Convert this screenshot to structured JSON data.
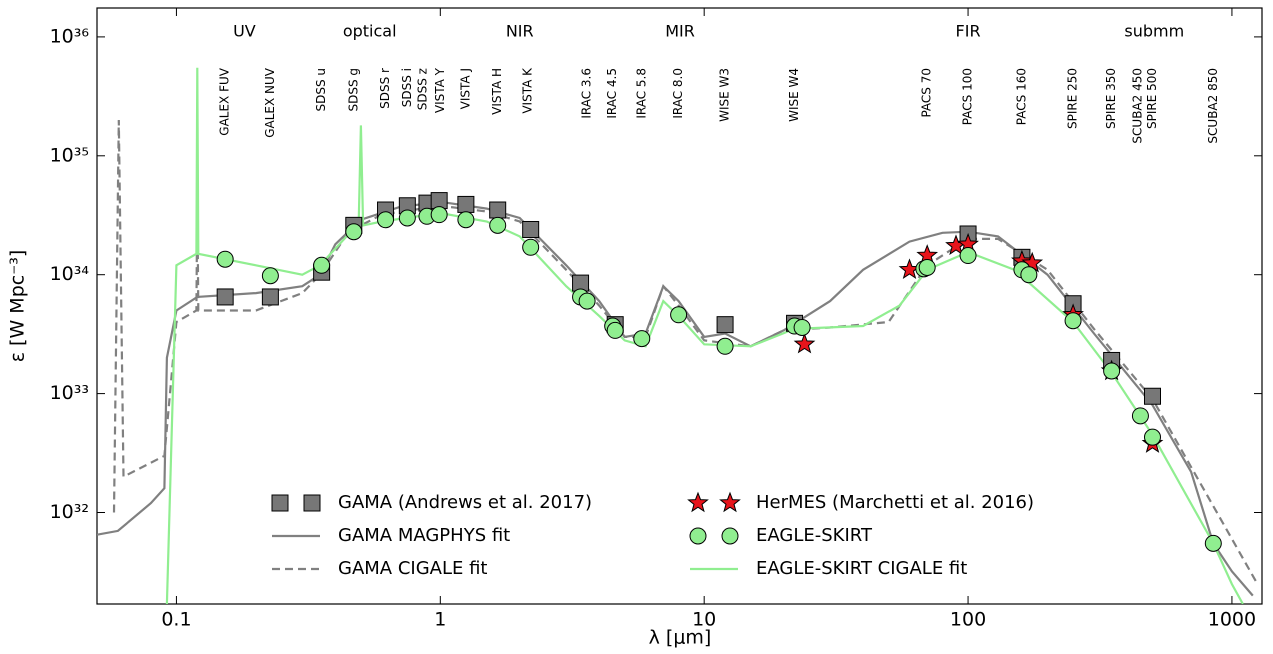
{
  "chart_data": {
    "type": "line",
    "xlabel": "λ [μm]",
    "ylabel": "ε [W Mpc⁻³]",
    "xlog": true,
    "ylog": true,
    "xlim": [
      0.05,
      1300
    ],
    "ylim": [
      1.7e+31,
      1.75e+36
    ],
    "xticks": [
      0.1,
      1,
      10,
      100,
      1000
    ],
    "yticks": [
      {
        "value": 1e+32,
        "label": "10³²"
      },
      {
        "value": 1e+33,
        "label": "10³³"
      },
      {
        "value": 1e+34,
        "label": "10³⁴"
      },
      {
        "value": 1e+35,
        "label": "10³⁵"
      },
      {
        "value": 1e+36,
        "label": "10³⁶"
      }
    ],
    "legend": "lower center",
    "bands": [
      {
        "label": "UV",
        "x": 0.181
      },
      {
        "label": "optical",
        "x": 0.54
      },
      {
        "label": "NIR",
        "x": 2.0
      },
      {
        "label": "MIR",
        "x": 8.1
      },
      {
        "label": "FIR",
        "x": 100
      },
      {
        "label": "submm",
        "x": 508
      }
    ],
    "filters": [
      {
        "label": "GALEX FUV",
        "x": 0.153
      },
      {
        "label": "GALEX NUV",
        "x": 0.227
      },
      {
        "label": "SDSS u",
        "x": 0.355
      },
      {
        "label": "SDSS g",
        "x": 0.47
      },
      {
        "label": "SDSS r",
        "x": 0.62
      },
      {
        "label": "SDSS i",
        "x": 0.75
      },
      {
        "label": "SDSS z",
        "x": 0.86
      },
      {
        "label": "VISTA Y",
        "x": 1.0
      },
      {
        "label": "VISTA J",
        "x": 1.25
      },
      {
        "label": "VISTA H",
        "x": 1.65
      },
      {
        "label": "VISTA K",
        "x": 2.15
      },
      {
        "label": "IRAC 3.6",
        "x": 3.6
      },
      {
        "label": "IRAC 4.5",
        "x": 4.5
      },
      {
        "label": "IRAC 5.8",
        "x": 5.8
      },
      {
        "label": "IRAC 8.0",
        "x": 8.0
      },
      {
        "label": "WISE W3",
        "x": 12
      },
      {
        "label": "WISE W4",
        "x": 22
      },
      {
        "label": "PACS 70",
        "x": 70
      },
      {
        "label": "PACS 100",
        "x": 100
      },
      {
        "label": "PACS 160",
        "x": 160
      },
      {
        "label": "SPIRE 250",
        "x": 250
      },
      {
        "label": "SPIRE 350",
        "x": 350
      },
      {
        "label": "SCUBA2 450",
        "x": 440
      },
      {
        "label": "SPIRE 500",
        "x": 500
      },
      {
        "label": "SCUBA2 850",
        "x": 850
      }
    ],
    "series": [
      {
        "name": "GAMA (Andrews et al. 2017)",
        "type": "scatter",
        "marker": "square",
        "color": "#777777",
        "x": [
          0.153,
          0.227,
          0.355,
          0.47,
          0.62,
          0.75,
          0.89,
          0.99,
          1.25,
          1.65,
          2.2,
          3.4,
          4.6,
          12,
          22,
          100,
          160,
          250,
          350,
          500
        ],
        "values": [
          6.5e+33,
          6.5e+33,
          1.05e+34,
          2.6e+34,
          3.5e+34,
          3.8e+34,
          4e+34,
          4.2e+34,
          3.9e+34,
          3.5e+34,
          2.4e+34,
          8.5e+33,
          3.8e+33,
          3.8e+33,
          3.9e+33,
          2.2e+34,
          1.4e+34,
          5.7e+33,
          1.9e+33,
          9.5e+32
        ]
      },
      {
        "name": "GAMA MAGPHYS fit",
        "type": "line",
        "dash": false,
        "color": "#808080",
        "x": [
          0.05,
          0.06,
          0.08,
          0.09,
          0.092,
          0.1,
          0.12,
          0.2,
          0.3,
          0.35,
          0.4,
          0.5,
          0.7,
          1,
          1.5,
          2,
          3,
          4,
          5,
          6,
          7,
          8,
          10,
          12,
          15,
          20,
          30,
          40,
          60,
          80,
          100,
          130,
          200,
          300,
          500,
          700,
          850,
          1000,
          1200
        ],
        "values": [
          6.5e+31,
          7e+31,
          1.2e+32,
          1.6e+32,
          2e+33,
          5e+33,
          6.5e+33,
          7e+33,
          8e+33,
          1e+34,
          1.8e+34,
          2.9e+34,
          3.7e+34,
          4.1e+34,
          3.6e+34,
          3e+34,
          1.2e+34,
          6e+33,
          3e+33,
          3.2e+33,
          8e+33,
          6e+33,
          3e+33,
          3.2e+33,
          2.5e+33,
          3.4e+33,
          6e+33,
          1.1e+34,
          1.9e+34,
          2.25e+34,
          2.3e+34,
          2.1e+34,
          1e+34,
          3.2e+33,
          8e+32,
          2.2e+32,
          5.5e+31,
          3.2e+31,
          2e+31
        ]
      },
      {
        "name": "GAMA CIGALE fit",
        "type": "line",
        "dash": true,
        "color": "#808080",
        "x": [
          0.058,
          0.0605,
          0.063,
          0.09,
          0.1,
          0.119,
          0.12,
          0.121,
          0.2,
          0.3,
          0.35,
          0.45,
          0.6,
          1,
          1.5,
          2,
          3,
          4,
          5,
          6,
          7,
          8,
          10,
          15,
          20,
          30,
          50,
          70,
          100,
          130,
          200,
          300,
          500,
          1000,
          1250
        ],
        "values": [
          1e+32,
          2e+35,
          2e+32,
          3e+32,
          4e+33,
          5e+33,
          5e+34,
          5e+33,
          5e+33,
          7e+33,
          1e+34,
          2.3e+34,
          3.2e+34,
          3.8e+34,
          3.4e+34,
          2.8e+34,
          1.1e+34,
          5.5e+33,
          3e+33,
          3e+33,
          8e+33,
          5.5e+33,
          2.8e+33,
          2.5e+33,
          3.4e+33,
          3.6e+33,
          4e+33,
          1.2e+34,
          2e+34,
          2e+34,
          1.1e+34,
          3.5e+33,
          9e+32,
          6e+31,
          2.5e+31
        ]
      },
      {
        "name": "HerMES (Marchetti et al. 2016)",
        "type": "scatter",
        "marker": "star",
        "color": "#e8141b",
        "x": [
          24,
          60,
          70,
          90,
          100,
          160,
          175,
          250,
          350,
          500
        ],
        "values": [
          2.6e+33,
          1.1e+34,
          1.45e+34,
          1.75e+34,
          1.8e+34,
          1.3e+34,
          1.25e+34,
          4.6e+33,
          1.55e+33,
          3.8e+32
        ]
      },
      {
        "name": "EAGLE-SKIRT",
        "type": "scatter",
        "marker": "circle",
        "color": "#90ee90",
        "x": [
          0.153,
          0.227,
          0.355,
          0.47,
          0.62,
          0.75,
          0.89,
          0.99,
          1.25,
          1.65,
          2.2,
          3.4,
          3.6,
          4.5,
          4.6,
          5.8,
          8.0,
          12,
          22,
          23.5,
          68,
          70,
          100,
          160,
          170,
          250,
          350,
          450,
          500,
          850
        ],
        "values": [
          1.35e+34,
          9.8e+33,
          1.2e+34,
          2.3e+34,
          2.9e+34,
          3e+34,
          3.1e+34,
          3.2e+34,
          2.9e+34,
          2.6e+34,
          1.7e+34,
          6.5e+33,
          6e+33,
          3.7e+33,
          3.4e+33,
          2.9e+33,
          4.6e+33,
          2.5e+33,
          3.7e+33,
          3.6e+33,
          1.12e+34,
          1.15e+34,
          1.45e+34,
          1.1e+34,
          1e+34,
          4.1e+33,
          1.55e+33,
          6.5e+32,
          4.3e+32,
          5.5e+31
        ]
      },
      {
        "name": "EAGLE-SKIRT CIGALE fit",
        "type": "line",
        "dash": false,
        "color": "#90ee90",
        "x": [
          0.092,
          0.1,
          0.119,
          0.12,
          0.121,
          0.2,
          0.3,
          0.35,
          0.45,
          0.49,
          0.5,
          0.51,
          0.6,
          1,
          1.5,
          2,
          3,
          4,
          5,
          6,
          7,
          8,
          10,
          15,
          22,
          40,
          55,
          70,
          100,
          150,
          250,
          350,
          500,
          850,
          1000,
          1100
        ],
        "values": [
          1.7e+31,
          1.2e+34,
          1.5e+34,
          5.5e+35,
          1.5e+34,
          1.2e+34,
          1e+34,
          1.2e+34,
          2.2e+34,
          2.5e+34,
          1.8e+35,
          2.6e+34,
          2.8e+34,
          3.3e+34,
          2.8e+34,
          2.1e+34,
          8e+33,
          4.5e+33,
          2.8e+33,
          2.5e+33,
          6e+33,
          4.5e+33,
          2.6e+33,
          2.5e+33,
          3.5e+33,
          3.7e+33,
          5.5e+33,
          1.1e+34,
          1.55e+34,
          1.1e+34,
          4e+33,
          1.5e+33,
          4.5e+32,
          5.5e+31,
          2.5e+31,
          1.7e+31
        ]
      }
    ]
  }
}
